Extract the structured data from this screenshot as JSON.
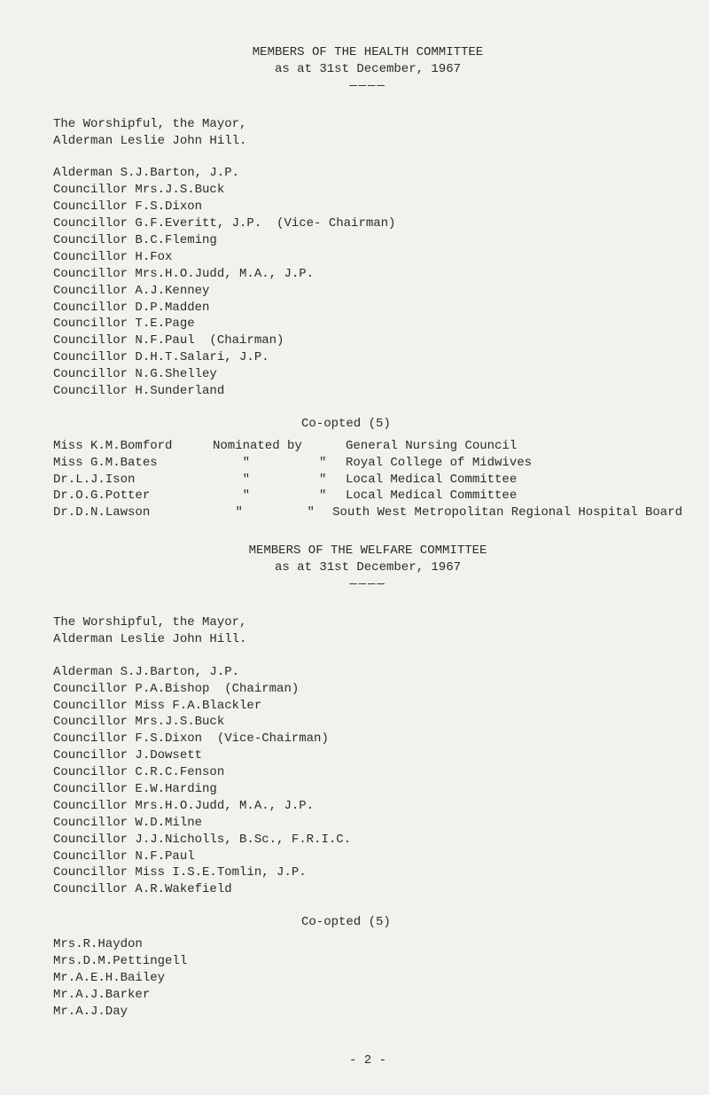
{
  "health": {
    "title1": "MEMBERS OF THE HEALTH COMMITTEE",
    "title2": "as at 31st December, 1967",
    "underline": "————",
    "intro1": "The Worshipful, the Mayor,",
    "intro2": "Alderman Leslie John Hill.",
    "members": [
      "Alderman S.J.Barton, J.P.",
      "Councillor Mrs.J.S.Buck",
      "Councillor F.S.Dixon",
      "Councillor G.F.Everitt, J.P.  (Vice- Chairman)",
      "Councillor B.C.Fleming",
      "Councillor H.Fox",
      "Councillor Mrs.H.O.Judd, M.A., J.P.",
      "Councillor A.J.Kenney",
      "Councillor D.P.Madden",
      "Councillor T.E.Page",
      "Councillor N.F.Paul  (Chairman)",
      "Councillor D.H.T.Salari, J.P.",
      "Councillor N.G.Shelley",
      "Councillor H.Sunderland"
    ],
    "coopted": "Co-opted (5)",
    "nominated": [
      {
        "name": "Miss K.M.Bomford",
        "by": "Nominated by",
        "q": "",
        "body": "General Nursing Council"
      },
      {
        "name": "Miss G.M.Bates",
        "by": "    \"",
        "q": "\"",
        "body": "Royal College of Midwives"
      },
      {
        "name": "Dr.L.J.Ison",
        "by": "    \"",
        "q": "\"",
        "body": "Local Medical Committee"
      },
      {
        "name": "Dr.O.G.Potter",
        "by": "    \"",
        "q": "\"",
        "body": "Local Medical Committee"
      },
      {
        "name": "Dr.D.N.Lawson",
        "by": "    \"",
        "q": "\"",
        "body": "South West Metropolitan Regional Hospital Board"
      }
    ]
  },
  "welfare": {
    "title1": "MEMBERS OF THE WELFARE COMMITTEE",
    "title2": "as at 31st December, 1967",
    "underline": "————",
    "intro1": "The Worshipful, the Mayor,",
    "intro2": "Alderman Leslie John Hill.",
    "members": [
      "Alderman S.J.Barton, J.P.",
      "Councillor P.A.Bishop  (Chairman)",
      "Councillor Miss F.A.Blackler",
      "Councillor Mrs.J.S.Buck",
      "Councillor F.S.Dixon  (Vice-Chairman)",
      "Councillor J.Dowsett",
      "Councillor C.R.C.Fenson",
      "Councillor E.W.Harding",
      "Councillor Mrs.H.O.Judd, M.A., J.P.",
      "Councillor W.D.Milne",
      "Councillor J.J.Nicholls, B.Sc., F.R.I.C.",
      "Councillor N.F.Paul",
      "Councillor Miss I.S.E.Tomlin, J.P.",
      "Councillor A.R.Wakefield"
    ],
    "coopted": "Co-opted (5)",
    "coopted_members": [
      "Mrs.R.Haydon",
      "Mrs.D.M.Pettingell",
      "Mr.A.E.H.Bailey",
      "Mr.A.J.Barker",
      "Mr.A.J.Day"
    ]
  },
  "page_number": "- 2 -"
}
